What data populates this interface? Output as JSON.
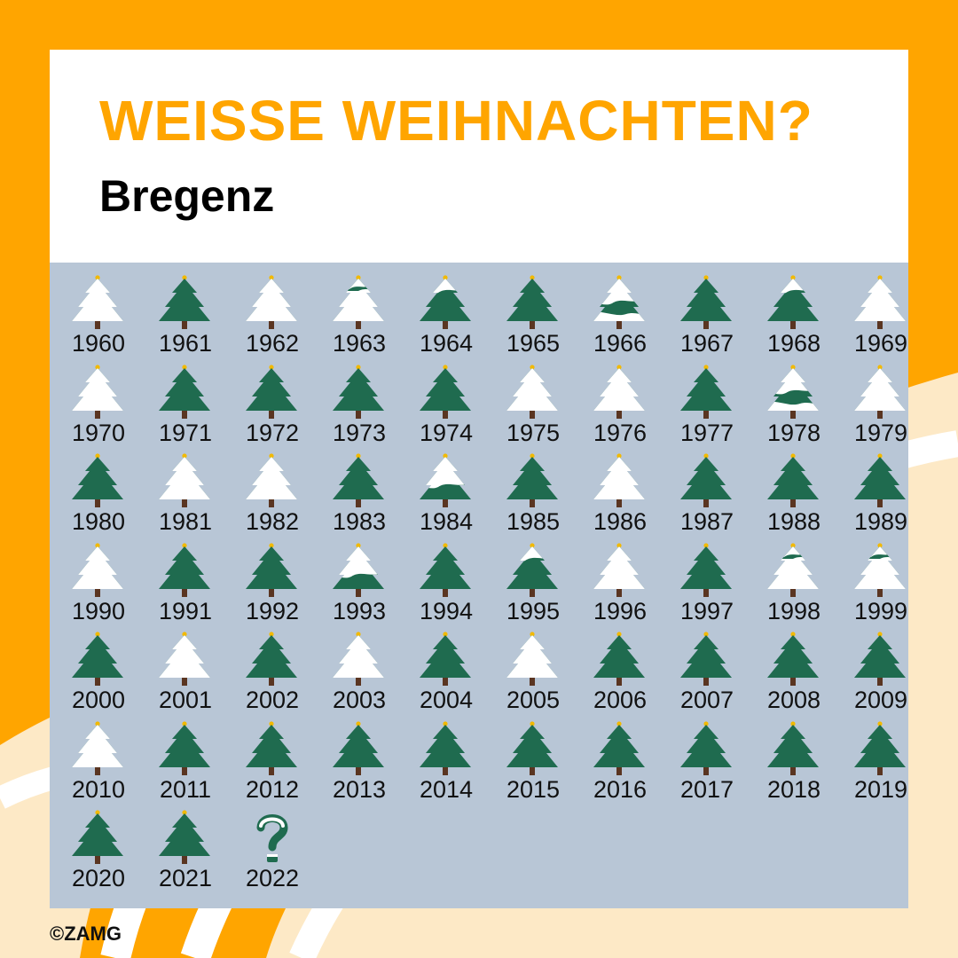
{
  "title": "WEISSE WEIHNACHTEN?",
  "subtitle": "Bregenz",
  "copyright": "©ZAMG",
  "colors": {
    "orange": "#ffa500",
    "cream": "#fde9c6",
    "panel": "#b8c6d6",
    "tree_green": "#1f6b4f",
    "snow": "#ffffff",
    "trunk": "#5a3521",
    "star": "#f2b900"
  },
  "legend_years": [
    {
      "year": "1960",
      "snow": "full"
    },
    {
      "year": "1961",
      "snow": "none"
    },
    {
      "year": "1962",
      "snow": "full"
    },
    {
      "year": "1963",
      "snow": "most"
    },
    {
      "year": "1964",
      "snow": "top"
    },
    {
      "year": "1965",
      "snow": "none"
    },
    {
      "year": "1966",
      "snow": "partial"
    },
    {
      "year": "1967",
      "snow": "none"
    },
    {
      "year": "1968",
      "snow": "top"
    },
    {
      "year": "1969",
      "snow": "full"
    },
    {
      "year": "1970",
      "snow": "full"
    },
    {
      "year": "1971",
      "snow": "none"
    },
    {
      "year": "1972",
      "snow": "none"
    },
    {
      "year": "1973",
      "snow": "none"
    },
    {
      "year": "1974",
      "snow": "none"
    },
    {
      "year": "1975",
      "snow": "full"
    },
    {
      "year": "1976",
      "snow": "full"
    },
    {
      "year": "1977",
      "snow": "none"
    },
    {
      "year": "1978",
      "snow": "partial"
    },
    {
      "year": "1979",
      "snow": "full"
    },
    {
      "year": "1980",
      "snow": "none"
    },
    {
      "year": "1981",
      "snow": "full"
    },
    {
      "year": "1982",
      "snow": "full"
    },
    {
      "year": "1983",
      "snow": "none"
    },
    {
      "year": "1984",
      "snow": "upper"
    },
    {
      "year": "1985",
      "snow": "none"
    },
    {
      "year": "1986",
      "snow": "full"
    },
    {
      "year": "1987",
      "snow": "none"
    },
    {
      "year": "1988",
      "snow": "none"
    },
    {
      "year": "1989",
      "snow": "none"
    },
    {
      "year": "1990",
      "snow": "full"
    },
    {
      "year": "1991",
      "snow": "none"
    },
    {
      "year": "1992",
      "snow": "none"
    },
    {
      "year": "1993",
      "snow": "upper"
    },
    {
      "year": "1994",
      "snow": "none"
    },
    {
      "year": "1995",
      "snow": "top"
    },
    {
      "year": "1996",
      "snow": "full"
    },
    {
      "year": "1997",
      "snow": "none"
    },
    {
      "year": "1998",
      "snow": "most"
    },
    {
      "year": "1999",
      "snow": "most"
    },
    {
      "year": "2000",
      "snow": "none"
    },
    {
      "year": "2001",
      "snow": "full"
    },
    {
      "year": "2002",
      "snow": "none"
    },
    {
      "year": "2003",
      "snow": "full"
    },
    {
      "year": "2004",
      "snow": "none"
    },
    {
      "year": "2005",
      "snow": "full"
    },
    {
      "year": "2006",
      "snow": "none"
    },
    {
      "year": "2007",
      "snow": "none"
    },
    {
      "year": "2008",
      "snow": "none"
    },
    {
      "year": "2009",
      "snow": "none"
    },
    {
      "year": "2010",
      "snow": "full"
    },
    {
      "year": "2011",
      "snow": "none"
    },
    {
      "year": "2012",
      "snow": "none"
    },
    {
      "year": "2013",
      "snow": "none"
    },
    {
      "year": "2014",
      "snow": "none"
    },
    {
      "year": "2015",
      "snow": "none"
    },
    {
      "year": "2016",
      "snow": "none"
    },
    {
      "year": "2017",
      "snow": "none"
    },
    {
      "year": "2018",
      "snow": "none"
    },
    {
      "year": "2019",
      "snow": "none"
    },
    {
      "year": "2020",
      "snow": "none"
    },
    {
      "year": "2021",
      "snow": "none"
    },
    {
      "year": "2022",
      "snow": "unknown"
    }
  ]
}
